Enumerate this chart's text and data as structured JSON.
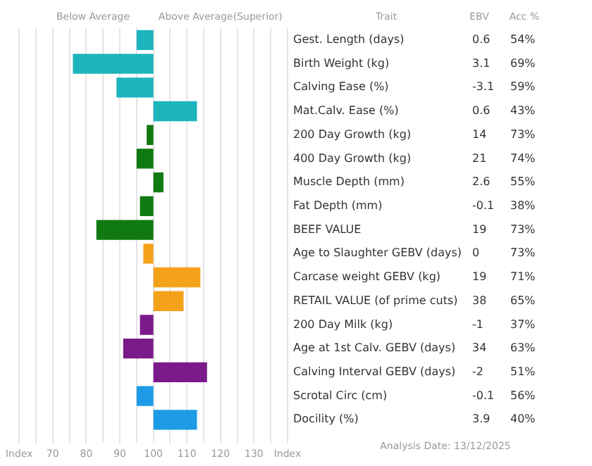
{
  "chart_data": {
    "type": "bar",
    "orientation": "horizontal",
    "categories": [
      "Gest. Length (days)",
      "Birth Weight (kg)",
      "Calving Ease (%)",
      "Mat.Calv. Ease (%)",
      "200 Day Growth (kg)",
      "400 Day Growth (kg)",
      "Muscle Depth (mm)",
      "Fat Depth (mm)",
      "BEEF VALUE",
      "Age to Slaughter GEBV (days)",
      "Carcase weight GEBV (kg)",
      "RETAIL VALUE (of prime cuts)",
      "200 Day Milk (kg)",
      "Age at 1st Calv. GEBV (days)",
      "Calving Interval GEBV (days)",
      "Scrotal Circ (cm)",
      "Docility (%)"
    ],
    "base": [
      100,
      100,
      100,
      100,
      100,
      100,
      100,
      100,
      100,
      100,
      100,
      100,
      100,
      100,
      100,
      100,
      100
    ],
    "values": [
      -5,
      -24,
      -11,
      13,
      -2,
      -5,
      3,
      -4,
      -17,
      -3,
      14,
      9,
      -4,
      -9,
      16,
      -5,
      13
    ],
    "colors": [
      "#1cb5bd",
      "#1cb5bd",
      "#1cb5bd",
      "#1cb5bd",
      "#107a10",
      "#107a10",
      "#107a10",
      "#107a10",
      "#107a10",
      "#f5a21b",
      "#f5a21b",
      "#f5a21b",
      "#7b1a8a",
      "#7b1a8a",
      "#7b1a8a",
      "#1e9be6",
      "#1e9be6"
    ],
    "xlim": [
      60,
      140
    ],
    "xticks": [
      {
        "value": 60,
        "label": "Index"
      },
      {
        "value": 65,
        "label": null
      },
      70,
      {
        "value": 75,
        "label": null
      },
      80,
      {
        "value": 85,
        "label": null
      },
      90,
      {
        "value": 95,
        "label": null
      },
      100,
      {
        "value": 105,
        "label": null
      },
      110,
      {
        "value": 115,
        "label": null
      },
      120,
      {
        "value": 125,
        "label": null
      },
      130,
      {
        "value": 135,
        "label": null
      },
      {
        "value": 140,
        "label": "Index"
      }
    ],
    "grid": "x",
    "annotations": [
      "Below Average",
      "Above Average(Superior)",
      "Trait",
      "EBV",
      "Acc %",
      "Analysis Date: 13/12/2025",
      "0.6",
      "3.1",
      "-3.1",
      "0.6",
      "14",
      "21",
      "2.6",
      "-0.1",
      "19",
      "0",
      "19",
      "38",
      "-1",
      "34",
      "-2",
      "-0.1",
      "3.9",
      "54%",
      "69%",
      "59%",
      "43%",
      "73%",
      "74%",
      "55%",
      "38%",
      "73%",
      "73%",
      "71%",
      "65%",
      "37%",
      "63%",
      "51%",
      "56%",
      "40%"
    ]
  }
}
